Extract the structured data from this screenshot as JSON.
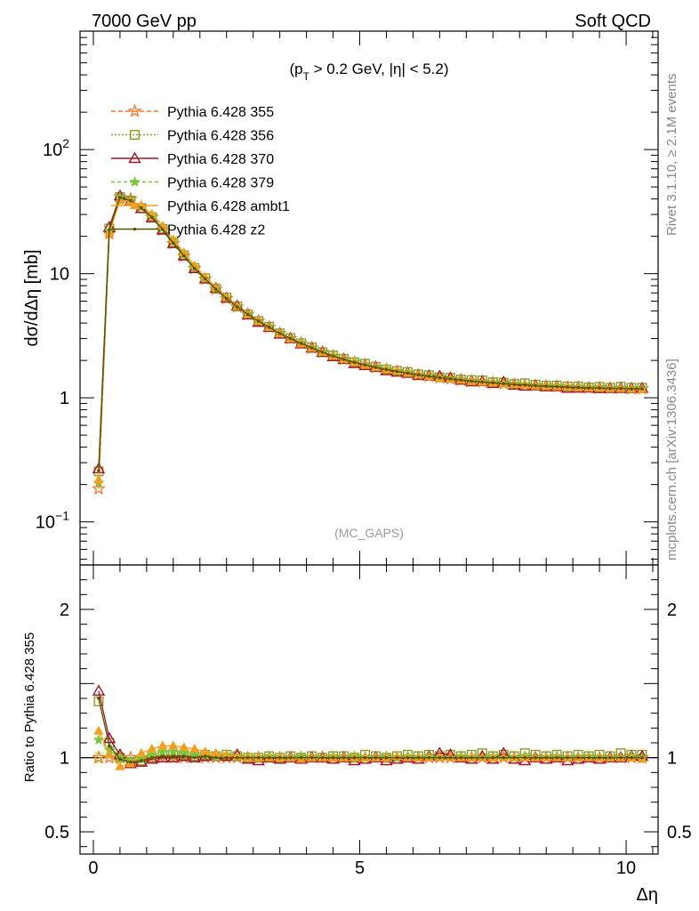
{
  "header": {
    "left": "7000 GeV pp",
    "right": "Soft QCD"
  },
  "side_labels": {
    "top": "Rivet 3.1.10, ≥ 2.1M events",
    "bottom": "mcplots.cern.ch [arXiv:1306.3436]"
  },
  "chart_data": [
    {
      "type": "line",
      "role": "main",
      "title": "",
      "cut_label": {
        "pre": "(p",
        "sub": "T",
        "post": " > 0.2 GeV, |η| < 5.2)"
      },
      "watermark": "(MC_GAPS)",
      "ylabel": "dσ/dΔη [mb]",
      "xlabel": "Δη",
      "yscale": "log",
      "ylim": [
        0.045,
        900
      ],
      "xlim": [
        -0.25,
        10.6
      ],
      "y_tick_labels": [
        {
          "value": 0.1,
          "base": "10",
          "exp": "−1"
        },
        {
          "value": 1,
          "base": "1",
          "exp": ""
        },
        {
          "value": 10,
          "base": "10",
          "exp": ""
        },
        {
          "value": 100,
          "base": "10",
          "exp": "2"
        }
      ],
      "x": [
        0.1,
        0.3,
        0.5,
        0.7,
        0.9,
        1.1,
        1.3,
        1.5,
        1.7,
        1.9,
        2.1,
        2.3,
        2.5,
        2.7,
        2.9,
        3.1,
        3.3,
        3.5,
        3.7,
        3.9,
        4.1,
        4.3,
        4.5,
        4.7,
        4.9,
        5.1,
        5.3,
        5.5,
        5.7,
        5.9,
        6.1,
        6.3,
        6.5,
        6.7,
        6.9,
        7.1,
        7.3,
        7.5,
        7.7,
        7.9,
        8.1,
        8.3,
        8.5,
        8.7,
        8.9,
        9.1,
        9.3,
        9.5,
        9.7,
        9.9,
        10.1,
        10.3
      ],
      "reference": [
        0.185,
        21.0,
        41.5,
        40.0,
        34.5,
        28.5,
        22.5,
        17.5,
        13.8,
        11.0,
        9.0,
        7.5,
        6.3,
        5.4,
        4.7,
        4.15,
        3.7,
        3.3,
        3.0,
        2.75,
        2.52,
        2.33,
        2.17,
        2.04,
        1.93,
        1.84,
        1.76,
        1.69,
        1.63,
        1.58,
        1.53,
        1.49,
        1.45,
        1.42,
        1.39,
        1.36,
        1.34,
        1.32,
        1.3,
        1.28,
        1.27,
        1.25,
        1.24,
        1.23,
        1.22,
        1.21,
        1.2,
        1.2,
        1.19,
        1.19,
        1.18,
        1.18
      ],
      "series": [
        {
          "name": "Pythia 6.428 355",
          "color": "#f07830",
          "dash": "5,3",
          "marker": "star-open",
          "ratio": [
            1,
            1,
            1,
            1,
            1,
            1,
            1,
            1,
            1,
            1,
            1,
            1,
            1,
            1,
            1,
            1,
            1,
            1,
            1,
            1,
            1,
            1,
            1,
            1,
            1,
            1,
            1,
            1,
            1,
            1,
            1,
            1,
            1,
            1,
            1,
            1,
            1,
            1,
            1,
            1,
            1,
            1,
            1,
            1,
            1,
            1,
            1,
            1,
            1,
            1,
            1,
            1
          ]
        },
        {
          "name": "Pythia 6.428 356",
          "color": "#8c9a22",
          "dash": "2,2",
          "marker": "square-open",
          "ratio": [
            1.38,
            1.1,
            1.0,
            0.97,
            0.98,
            1.0,
            1.02,
            1.02,
            1.02,
            1.01,
            1.02,
            1.01,
            1.02,
            1.01,
            1.0,
            1.0,
            1.01,
            1.0,
            1.01,
            1.0,
            1.01,
            1.0,
            1.01,
            1.01,
            1.0,
            1.02,
            1.01,
            1.0,
            1.01,
            1.02,
            1.01,
            1.02,
            1.01,
            1.02,
            1.01,
            1.02,
            1.03,
            1.01,
            1.02,
            1.01,
            1.03,
            1.02,
            1.01,
            1.02,
            1.01,
            1.02,
            1.01,
            1.02,
            1.01,
            1.03,
            1.02,
            1.02
          ]
        },
        {
          "name": "Pythia 6.428 370",
          "color": "#a3122a",
          "dash": "",
          "marker": "triangle-open",
          "ratio": [
            1.45,
            1.13,
            1.02,
            0.96,
            0.97,
            0.99,
            1.0,
            1.0,
            1.01,
            1.0,
            1.01,
            1.02,
            1.01,
            1.02,
            0.99,
            0.98,
            1.0,
            0.99,
            1.0,
            0.99,
            1.0,
            1.0,
            0.99,
            1.0,
            0.98,
            0.99,
            1.0,
            0.98,
            0.99,
            1.0,
            0.99,
            1.01,
            1.03,
            1.02,
            1.0,
            0.99,
            1.01,
            0.99,
            1.03,
            0.99,
            0.98,
            1.0,
            0.99,
            1.0,
            0.98,
            0.99,
            1.0,
            0.99,
            1.0,
            1.0,
            1.01,
            1.01
          ]
        },
        {
          "name": "Pythia 6.428 379",
          "color": "#7cc43a",
          "dash": "4,3",
          "marker": "star-filled",
          "ratio": [
            1.12,
            1.05,
            1.0,
            0.98,
            0.99,
            1.02,
            1.04,
            1.04,
            1.03,
            1.02,
            1.02,
            1.01,
            1.02,
            1.01,
            1.0,
            1.0,
            1.01,
            1.0,
            1.0,
            1.01,
            1.0,
            1.0,
            1.01,
            1.0,
            1.01,
            1.0,
            1.0,
            1.01,
            1.0,
            1.01,
            1.0,
            1.01,
            1.0,
            1.0,
            1.01,
            1.0,
            1.0,
            1.01,
            1.0,
            1.0,
            1.01,
            1.0,
            1.0,
            1.01,
            1.0,
            1.0,
            1.01,
            1.0,
            1.0,
            1.0,
            1.01,
            1.0
          ]
        },
        {
          "name": "Pythia 6.428 ambt1",
          "color": "#f0a020",
          "dash": "",
          "marker": "triangle-filled",
          "ratio": [
            1.18,
            1.02,
            0.94,
            0.96,
            1.03,
            1.06,
            1.08,
            1.08,
            1.07,
            1.06,
            1.04,
            1.03,
            1.02,
            1.01,
            1.0,
            1.0,
            1.0,
            1.0,
            1.0,
            0.99,
            1.0,
            1.0,
            1.0,
            1.0,
            1.0,
            1.0,
            1.0,
            1.0,
            1.01,
            1.0,
            1.0,
            1.0,
            1.0,
            1.0,
            1.0,
            1.0,
            1.0,
            1.0,
            1.0,
            1.0,
            1.0,
            1.0,
            1.0,
            1.0,
            1.0,
            1.0,
            1.0,
            1.0,
            1.0,
            1.0,
            1.0,
            0.99
          ]
        },
        {
          "name": "Pythia 6.428 z2",
          "color": "#555500",
          "dash": "",
          "marker": "dot",
          "ratio": [
            1.4,
            1.08,
            0.99,
            0.97,
            0.98,
            1.0,
            1.01,
            1.01,
            1.01,
            1.0,
            1.01,
            1.0,
            1.0,
            1.0,
            1.0,
            1.0,
            1.0,
            1.0,
            1.0,
            1.0,
            1.0,
            1.0,
            1.0,
            1.0,
            1.0,
            1.0,
            1.0,
            1.0,
            1.0,
            1.0,
            1.0,
            1.0,
            1.0,
            1.0,
            1.0,
            1.0,
            1.0,
            1.0,
            1.0,
            1.0,
            1.0,
            1.0,
            1.0,
            1.0,
            1.0,
            1.0,
            1.0,
            1.0,
            1.0,
            1.0,
            1.0,
            1.0
          ]
        }
      ]
    },
    {
      "type": "line",
      "role": "ratio",
      "ylabel": "Ratio to Pythia 6.428 355",
      "xlabel": "Δη",
      "ylim": [
        0.35,
        2.3
      ],
      "xlim": [
        -0.25,
        10.6
      ],
      "y_ticks": [
        0.5,
        1,
        2
      ],
      "y_tick_labels": [
        "0.5",
        "1",
        "2"
      ],
      "x_ticks": [
        0,
        5,
        10
      ],
      "x_tick_labels": [
        "0",
        "5",
        "10"
      ],
      "reference_band_color": "#c8f0a0"
    }
  ]
}
